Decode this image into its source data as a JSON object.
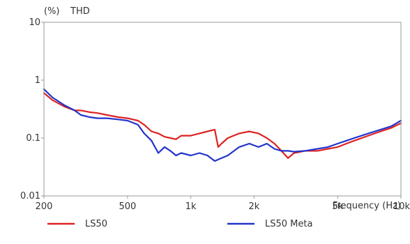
{
  "chart_data": {
    "type": "line",
    "unit_label": "(%)",
    "title": "THD",
    "xlabel": "Frequency  (Hz)",
    "x_scale": "log",
    "y_scale": "log",
    "xlim": [
      200,
      10000
    ],
    "ylim": [
      0.01,
      10
    ],
    "grid": false,
    "legend_position": "bottom",
    "x_ticks": [
      {
        "value": 200,
        "label": "200"
      },
      {
        "value": 500,
        "label": "500"
      },
      {
        "value": 1000,
        "label": "1k"
      },
      {
        "value": 2000,
        "label": "2k"
      },
      {
        "value": 5000,
        "label": "5k"
      },
      {
        "value": 10000,
        "label": "10k"
      }
    ],
    "y_ticks": [
      {
        "value": 10,
        "label": "10"
      },
      {
        "value": 1,
        "label": "1"
      },
      {
        "value": 0.1,
        "label": "0.1"
      },
      {
        "value": 0.01,
        "label": "0.01"
      }
    ],
    "series": [
      {
        "name": "LS50",
        "color": "#dd2222",
        "points": [
          [
            200,
            0.6
          ],
          [
            220,
            0.45
          ],
          [
            250,
            0.35
          ],
          [
            280,
            0.3
          ],
          [
            300,
            0.3
          ],
          [
            330,
            0.28
          ],
          [
            360,
            0.27
          ],
          [
            400,
            0.25
          ],
          [
            450,
            0.23
          ],
          [
            500,
            0.22
          ],
          [
            560,
            0.2
          ],
          [
            600,
            0.17
          ],
          [
            650,
            0.13
          ],
          [
            700,
            0.12
          ],
          [
            750,
            0.105
          ],
          [
            800,
            0.1
          ],
          [
            850,
            0.095
          ],
          [
            900,
            0.11
          ],
          [
            1000,
            0.11
          ],
          [
            1100,
            0.12
          ],
          [
            1200,
            0.13
          ],
          [
            1300,
            0.14
          ],
          [
            1350,
            0.07
          ],
          [
            1400,
            0.08
          ],
          [
            1500,
            0.1
          ],
          [
            1700,
            0.12
          ],
          [
            1900,
            0.13
          ],
          [
            2100,
            0.12
          ],
          [
            2300,
            0.1
          ],
          [
            2500,
            0.08
          ],
          [
            2700,
            0.06
          ],
          [
            2900,
            0.045
          ],
          [
            3100,
            0.055
          ],
          [
            3500,
            0.06
          ],
          [
            4000,
            0.06
          ],
          [
            4500,
            0.065
          ],
          [
            5000,
            0.07
          ],
          [
            5500,
            0.08
          ],
          [
            6000,
            0.09
          ],
          [
            7000,
            0.11
          ],
          [
            8000,
            0.13
          ],
          [
            9000,
            0.15
          ],
          [
            10000,
            0.18
          ]
        ]
      },
      {
        "name": "LS50 Meta",
        "color": "#2233cc",
        "points": [
          [
            200,
            0.7
          ],
          [
            220,
            0.5
          ],
          [
            250,
            0.37
          ],
          [
            280,
            0.3
          ],
          [
            300,
            0.25
          ],
          [
            330,
            0.23
          ],
          [
            360,
            0.22
          ],
          [
            400,
            0.22
          ],
          [
            450,
            0.21
          ],
          [
            500,
            0.2
          ],
          [
            560,
            0.17
          ],
          [
            600,
            0.12
          ],
          [
            650,
            0.09
          ],
          [
            700,
            0.055
          ],
          [
            750,
            0.07
          ],
          [
            800,
            0.06
          ],
          [
            850,
            0.05
          ],
          [
            900,
            0.055
          ],
          [
            1000,
            0.05
          ],
          [
            1100,
            0.055
          ],
          [
            1200,
            0.05
          ],
          [
            1300,
            0.04
          ],
          [
            1400,
            0.045
          ],
          [
            1500,
            0.05
          ],
          [
            1700,
            0.07
          ],
          [
            1900,
            0.08
          ],
          [
            2100,
            0.07
          ],
          [
            2300,
            0.08
          ],
          [
            2500,
            0.065
          ],
          [
            2700,
            0.06
          ],
          [
            2900,
            0.06
          ],
          [
            3100,
            0.058
          ],
          [
            3500,
            0.06
          ],
          [
            4000,
            0.065
          ],
          [
            4500,
            0.07
          ],
          [
            5000,
            0.08
          ],
          [
            5500,
            0.09
          ],
          [
            6000,
            0.1
          ],
          [
            7000,
            0.12
          ],
          [
            8000,
            0.14
          ],
          [
            9000,
            0.16
          ],
          [
            10000,
            0.2
          ]
        ]
      }
    ]
  }
}
